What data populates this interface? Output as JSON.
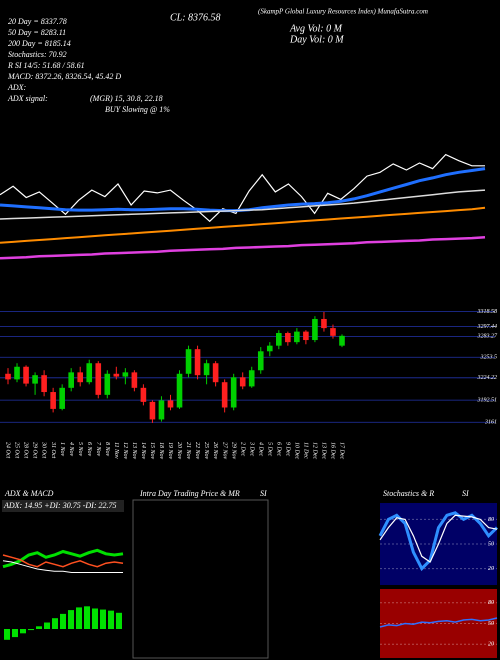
{
  "chart_data": [
    {
      "type": "line",
      "title": "(SkampP Global Luxury Resources Index) MunafaSutra.com",
      "annotations": [
        "20 Day = 8337.78",
        "50 Day = 8283.11",
        "200 Day = 8185.14",
        "Stochastics: 70.92",
        "R   SI 14/5: 51.68 / 58.61",
        "MACD: 8372.26, 8326.54, 45.42 D",
        "ADX:",
        "ADX signal:"
      ],
      "center_annotations": [
        "CL: 8376.58",
        "Avg Vol: 0  M",
        "Day Vol: 0  M"
      ],
      "notes": [
        "(MGR) 15, 30.8, 22.18",
        "BUY Slowing @ 1%"
      ],
      "ylim": [
        3050,
        3350
      ],
      "series": [
        {
          "color": "#ffffff",
          "width": 1.2,
          "values": [
            3222,
            3240,
            3216,
            3228,
            3204,
            3180,
            3210,
            3232,
            3218,
            3245,
            3200,
            3230,
            3226,
            3232,
            3210,
            3190,
            3165,
            3192,
            3182,
            3230,
            3265,
            3228,
            3245,
            3218,
            3182,
            3225,
            3212,
            3235,
            3262,
            3270,
            3288,
            3275,
            3290,
            3278,
            3308,
            3295,
            3284,
            3284
          ]
        },
        {
          "color": "#1f6fff",
          "width": 3,
          "values": [
            3200,
            3198,
            3196,
            3194,
            3192,
            3190,
            3189,
            3189,
            3190,
            3191,
            3190,
            3190,
            3191,
            3192,
            3192,
            3191,
            3189,
            3188,
            3188,
            3190,
            3194,
            3197,
            3200,
            3202,
            3203,
            3205,
            3208,
            3213,
            3220,
            3228,
            3236,
            3244,
            3252,
            3258,
            3265,
            3270,
            3274,
            3278
          ]
        },
        {
          "color": "#dddddd",
          "width": 1.5,
          "values": [
            3170,
            3171,
            3172,
            3173,
            3174,
            3175,
            3176,
            3177,
            3178,
            3179,
            3180,
            3181,
            3182,
            3183,
            3184,
            3185,
            3186,
            3187,
            3188,
            3189,
            3190,
            3192,
            3194,
            3196,
            3198,
            3200,
            3202,
            3204,
            3207,
            3210,
            3213,
            3216,
            3219,
            3222,
            3225,
            3228,
            3230,
            3232
          ]
        },
        {
          "color": "#ff8c00",
          "width": 2,
          "values": [
            3119,
            3121,
            3123,
            3125,
            3127,
            3129,
            3131,
            3133,
            3135,
            3137,
            3139,
            3141,
            3143,
            3145,
            3147,
            3149,
            3151,
            3153,
            3155,
            3157,
            3159,
            3161,
            3163,
            3165,
            3167,
            3169,
            3171,
            3173,
            3175,
            3177,
            3179,
            3181,
            3183,
            3185,
            3187,
            3189,
            3191,
            3194
          ]
        },
        {
          "color": "#e040e0",
          "width": 2.5,
          "values": [
            3086,
            3087,
            3088,
            3090,
            3091,
            3092,
            3093,
            3094,
            3096,
            3097,
            3098,
            3099,
            3100,
            3102,
            3103,
            3104,
            3105,
            3106,
            3108,
            3109,
            3110,
            3111,
            3112,
            3114,
            3115,
            3116,
            3117,
            3118,
            3120,
            3121,
            3122,
            3123,
            3124,
            3126,
            3127,
            3128,
            3129,
            3131
          ]
        }
      ]
    },
    {
      "type": "candlestick",
      "categories": [
        "24 Oct",
        "25 Oct",
        "28 Oct",
        "29 Oct",
        "30 Oct",
        "31 Oct",
        "1 Nov",
        "4 Nov",
        "5 Nov",
        "6 Nov",
        "7 Nov",
        "8 Nov",
        "11 Nov",
        "12 Nov",
        "13 Nov",
        "14 Nov",
        "15 Nov",
        "18 Nov",
        "19 Nov",
        "20 Nov",
        "21 Nov",
        "22 Nov",
        "25 Nov",
        "26 Nov",
        "27 Nov",
        "29 Nov",
        "2 Dec",
        "3 Dec",
        "4 Dec",
        "5 Dec",
        "6 Dec",
        "9 Dec",
        "10 Dec",
        "11 Dec",
        "12 Dec",
        "13 Dec",
        "16 Dec",
        "17 Dec"
      ],
      "open": [
        3230,
        3222,
        3240,
        3216,
        3228,
        3204,
        3180,
        3210,
        3232,
        3218,
        3245,
        3200,
        3230,
        3226,
        3232,
        3210,
        3190,
        3165,
        3192,
        3182,
        3230,
        3265,
        3228,
        3245,
        3218,
        3182,
        3225,
        3212,
        3235,
        3262,
        3270,
        3288,
        3275,
        3290,
        3278,
        3308,
        3295,
        3270
      ],
      "high": [
        3238,
        3245,
        3242,
        3232,
        3235,
        3210,
        3215,
        3238,
        3240,
        3250,
        3248,
        3235,
        3240,
        3238,
        3235,
        3215,
        3192,
        3198,
        3200,
        3235,
        3270,
        3270,
        3250,
        3248,
        3222,
        3230,
        3232,
        3240,
        3268,
        3275,
        3292,
        3290,
        3295,
        3292,
        3312,
        3318,
        3300,
        3286
      ],
      "low": [
        3215,
        3218,
        3212,
        3200,
        3198,
        3175,
        3178,
        3205,
        3212,
        3215,
        3195,
        3195,
        3222,
        3215,
        3205,
        3185,
        3160,
        3162,
        3178,
        3180,
        3225,
        3222,
        3215,
        3212,
        3175,
        3178,
        3208,
        3210,
        3230,
        3255,
        3265,
        3270,
        3272,
        3272,
        3275,
        3290,
        3280,
        3268
      ],
      "close": [
        3222,
        3240,
        3216,
        3228,
        3204,
        3180,
        3210,
        3232,
        3218,
        3245,
        3200,
        3230,
        3226,
        3232,
        3210,
        3190,
        3165,
        3192,
        3182,
        3230,
        3265,
        3228,
        3245,
        3218,
        3182,
        3225,
        3212,
        3235,
        3262,
        3270,
        3288,
        3275,
        3290,
        3278,
        3308,
        3295,
        3284,
        3284
      ],
      "up_color": "#00d000",
      "down_color": "#ff2020",
      "ylim": [
        3140,
        3335
      ],
      "yticks": [
        3318.58,
        3297.44,
        3283.27,
        3253.5,
        3224.22,
        3192.51,
        3161
      ],
      "grid": true
    },
    {
      "type": "line",
      "title": "ADX & MACD",
      "subtitle": "ADX: 14.95 +DI: 30.75 -DI: 22.75",
      "ylim": [
        0,
        60
      ],
      "series": [
        {
          "color": "#00e000",
          "width": 3,
          "values": [
            20,
            22,
            25,
            30,
            32,
            28,
            30,
            33,
            31,
            29,
            32,
            34,
            31,
            30,
            31
          ]
        },
        {
          "color": "#ff5020",
          "width": 1.5,
          "values": [
            30,
            28,
            26,
            22,
            20,
            24,
            22,
            20,
            23,
            25,
            22,
            20,
            23,
            24,
            23
          ]
        },
        {
          "color": "#ffffff",
          "width": 1,
          "values": [
            25,
            24,
            22,
            20,
            18,
            17,
            16,
            16,
            15,
            15,
            15,
            15,
            15,
            15,
            15
          ]
        }
      ]
    },
    {
      "type": "bar",
      "color": "#00e000",
      "ylim": [
        -50,
        50
      ],
      "values": [
        -20,
        -15,
        -8,
        -2,
        5,
        12,
        20,
        28,
        35,
        40,
        42,
        38,
        36,
        34,
        30
      ]
    },
    {
      "type": "empty",
      "title": "Intra Day Trading Price & MR",
      "label": "SI"
    },
    {
      "type": "line",
      "title": "Stochastics & R",
      "label": "SI",
      "ylim": [
        0,
        100
      ],
      "yticks": [
        20,
        50,
        80
      ],
      "background": "#000066",
      "series": [
        {
          "color": "#2f8fff",
          "width": 3,
          "values": [
            60,
            80,
            85,
            75,
            40,
            20,
            30,
            70,
            85,
            88,
            80,
            85,
            75,
            60,
            70
          ]
        },
        {
          "color": "#ffffff",
          "width": 1.2,
          "values": [
            55,
            70,
            82,
            80,
            60,
            35,
            28,
            50,
            75,
            85,
            84,
            83,
            80,
            70,
            68
          ]
        }
      ]
    },
    {
      "type": "line",
      "ylim": [
        0,
        100
      ],
      "yticks": [
        20,
        50,
        80
      ],
      "background": "#990000",
      "series": [
        {
          "color": "#2f6fff",
          "width": 1.5,
          "values": [
            45,
            48,
            47,
            50,
            49,
            52,
            51,
            53,
            54,
            52,
            55,
            56,
            54,
            55,
            58
          ]
        }
      ]
    }
  ]
}
